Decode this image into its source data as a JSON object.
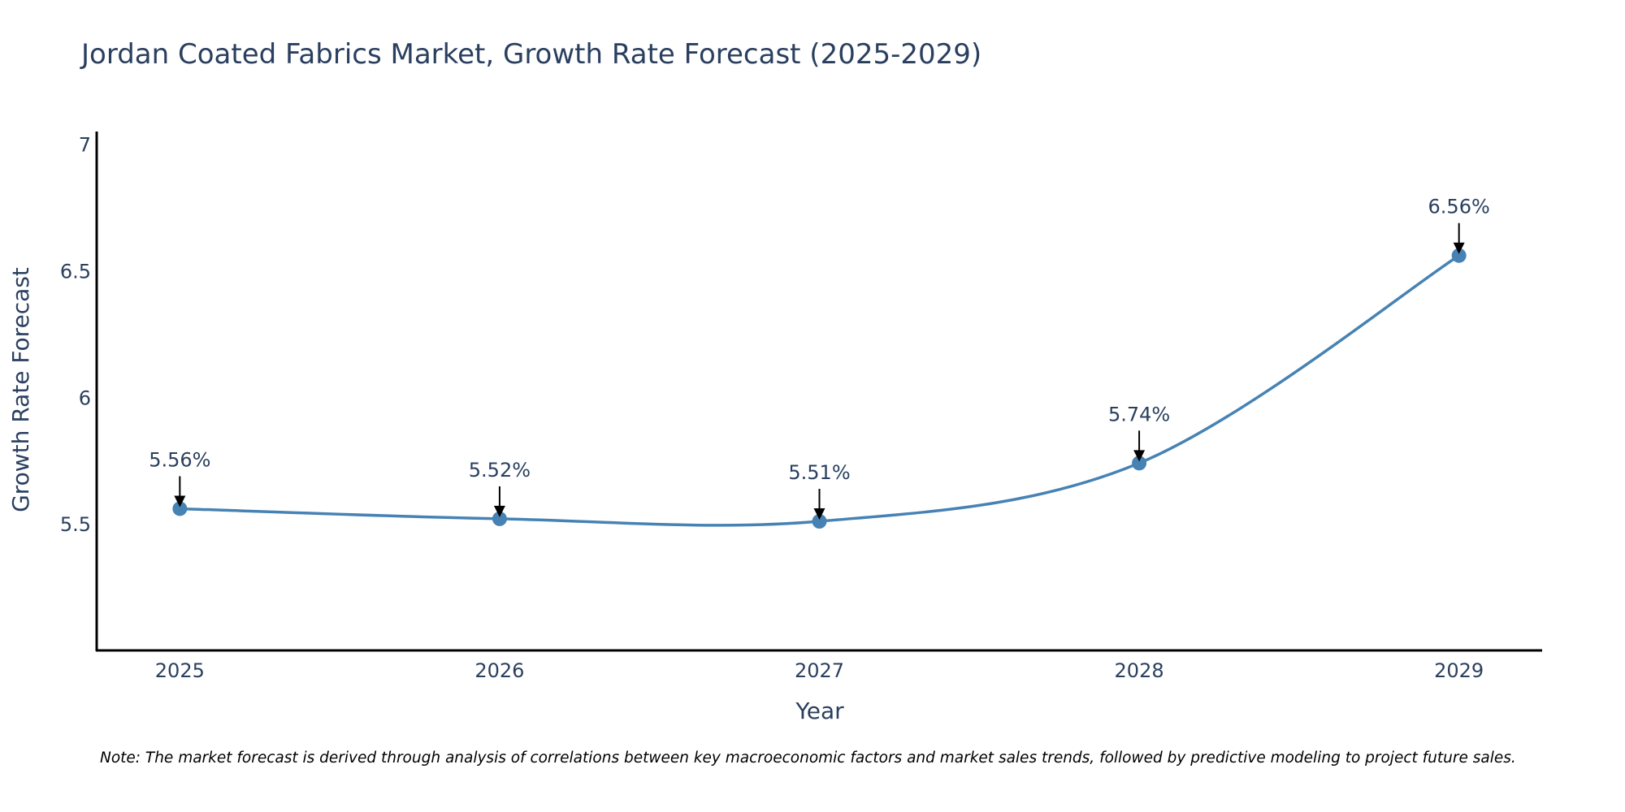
{
  "chart_data": {
    "type": "line",
    "title": "Jordan Coated Fabrics Market, Growth Rate Forecast (2025-2029)",
    "xlabel": "Year",
    "ylabel": "Growth Rate Forecast",
    "categories": [
      "2025",
      "2026",
      "2027",
      "2028",
      "2029"
    ],
    "x": [
      2025,
      2026,
      2027,
      2028,
      2029
    ],
    "values": [
      5.56,
      5.52,
      5.51,
      5.74,
      6.56
    ],
    "data_labels": [
      "5.56%",
      "5.52%",
      "5.51%",
      "5.74%",
      "6.56%"
    ],
    "ylim": [
      5.0,
      7.05
    ],
    "xlim": [
      2024.74,
      2029.26
    ],
    "yticks": [
      5.5,
      6,
      6.5,
      7
    ],
    "ytick_labels": [
      "5.5",
      "6",
      "6.5",
      "7"
    ],
    "grid": false,
    "line_shape": "spline",
    "series_color": "#4682b4"
  },
  "note": "Note: The market forecast is derived through analysis of correlations between key macroeconomic factors and market sales trends, followed by predictive modeling to project future sales."
}
